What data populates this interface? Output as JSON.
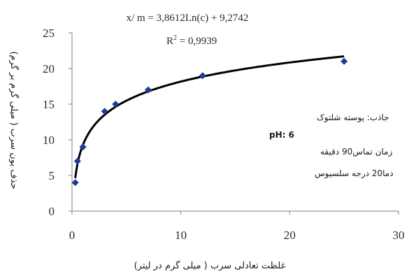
{
  "chart_data": {
    "type": "scatter",
    "title": "",
    "equation": "x/ m = 3,8612Ln(c) + 9,2742",
    "r_squared_label": "R",
    "r_squared_sup": "2",
    "r_squared_value": " = 0,9939",
    "xlabel": "غلظت تعادلی سرب ( میلی گرم در لیتر)",
    "ylabel": "حذف یون سرب ( میلی گرم بر گرم)",
    "xlim": [
      0,
      30
    ],
    "ylim": [
      0,
      25
    ],
    "xticks": [
      0,
      10,
      20,
      30
    ],
    "yticks": [
      0,
      5,
      10,
      15,
      20,
      25
    ],
    "grid": false,
    "marker": "diamond",
    "marker_color": "#1f3a93",
    "trendline": {
      "type": "logarithmic",
      "a": 3.8612,
      "b": 9.2742,
      "color": "#000000"
    },
    "series": [
      {
        "x": [
          0.3,
          0.5,
          1.0,
          3.0,
          4.0,
          7.0,
          12.0,
          25.0
        ],
        "y": [
          4.0,
          7.0,
          9.0,
          14.0,
          15.0,
          17.0,
          19.0,
          21.0
        ]
      }
    ],
    "annotations": {
      "adsorbent": "جاذب: پوسته شلتوک",
      "ph": "pH: 6",
      "contact_time": "زمان تماس90 دقیقه",
      "temperature": "دما20 درجه سلسیوس"
    }
  }
}
